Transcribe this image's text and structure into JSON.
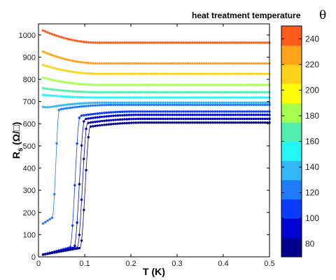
{
  "chart_data": {
    "type": "scatter",
    "xlabel": "T (K)",
    "ylabel": "R",
    "ylabel_sub": "s",
    "ylabel_unit": " (Ω/□)",
    "xlim": [
      0,
      0.5
    ],
    "ylim": [
      0,
      1050
    ],
    "x_ticks": [
      "0",
      "0.1",
      "0.2",
      "0.3",
      "0.4",
      "0.5"
    ],
    "y_ticks": [
      "0",
      "100",
      "200",
      "300",
      "400",
      "500",
      "600",
      "700",
      "800",
      "900",
      "1000"
    ],
    "colorbar": {
      "title": "heat treatment temperature",
      "symbol": "θ",
      "range": [
        70,
        250
      ],
      "ticks": [
        "80",
        "100",
        "120",
        "140",
        "160",
        "180",
        "200",
        "220",
        "240"
      ],
      "levels": [
        {
          "color": "#00008f"
        },
        {
          "color": "#0000d4"
        },
        {
          "color": "#0a3cff"
        },
        {
          "color": "#1f7cff"
        },
        {
          "color": "#31b8f5"
        },
        {
          "color": "#25f5f5"
        },
        {
          "color": "#52f0b0"
        },
        {
          "color": "#a5ff4d"
        },
        {
          "color": "#ffff00"
        },
        {
          "color": "#ffd21a"
        },
        {
          "color": "#ffa419"
        },
        {
          "color": "#ff5a19"
        }
      ]
    },
    "series": [
      {
        "color": "#ff5a19",
        "plateau": 965,
        "start": 1020,
        "tc": 0,
        "onset": 0
      },
      {
        "color": "#ffa419",
        "plateau": 872,
        "start": 925,
        "tc": 0,
        "onset": 0
      },
      {
        "color": "#ffd21a",
        "plateau": 825,
        "start": 865,
        "tc": 0,
        "onset": 0
      },
      {
        "color": "#a5ff4d",
        "plateau": 775,
        "start": 808,
        "tc": 0,
        "onset": 0
      },
      {
        "color": "#52f0b0",
        "plateau": 742,
        "start": 760,
        "tc": 0,
        "onset": 0
      },
      {
        "color": "#25f5f5",
        "plateau": 718,
        "start": 730,
        "tc": 0,
        "onset": 0
      },
      {
        "color": "#31b8f5",
        "plateau": 695,
        "start": 675,
        "tc": 0,
        "onset": 0.022
      },
      {
        "color": "#1f7cff",
        "plateau": 685,
        "start": 150,
        "tc": 0.03,
        "onset": 0.045
      },
      {
        "color": "#0a3cff",
        "plateau": 655,
        "start": 10,
        "tc": 0.068,
        "onset": 0.09
      },
      {
        "color": "#0000d4",
        "plateau": 640,
        "start": 10,
        "tc": 0.077,
        "onset": 0.1
      },
      {
        "color": "#0000b0",
        "plateau": 622,
        "start": 10,
        "tc": 0.084,
        "onset": 0.106
      },
      {
        "color": "#00008f",
        "plateau": 605,
        "start": 10,
        "tc": 0.09,
        "onset": 0.112
      }
    ]
  }
}
